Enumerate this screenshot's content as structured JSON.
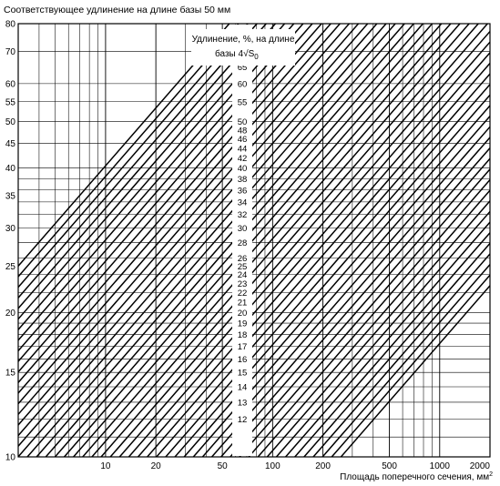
{
  "chart_data": {
    "type": "line",
    "title": "Соответствующее удлинение на длине базы 50 мм",
    "xlabel": "Площадь поперечного сечения, мм",
    "xlabel_superscript": "2",
    "ylabel": "",
    "legend_title_line1": "Удлинение, %, на длине",
    "legend_title_line2": "базы 4",
    "legend_title_sqrt": "√",
    "legend_title_symbol": "S",
    "legend_title_subscript": "0",
    "x_scale": "log",
    "y_scale": "log",
    "xlim": [
      3,
      2000
    ],
    "ylim": [
      10,
      80
    ],
    "x_ticks": [
      10,
      20,
      50,
      100,
      200,
      500,
      1000,
      2000
    ],
    "y_ticks": [
      10,
      15,
      20,
      25,
      30,
      35,
      40,
      45,
      50,
      55,
      60,
      70,
      80
    ],
    "grid": true,
    "reference_area_mm2": 50,
    "conversion_exponent": 0.4,
    "series_labels": [
      12,
      13,
      14,
      15,
      16,
      17,
      18,
      19,
      20,
      21,
      22,
      23,
      24,
      25,
      26,
      28,
      30,
      32,
      34,
      36,
      38,
      40,
      42,
      44,
      46,
      48,
      50,
      55,
      60,
      65
    ],
    "series_count": 54
  }
}
